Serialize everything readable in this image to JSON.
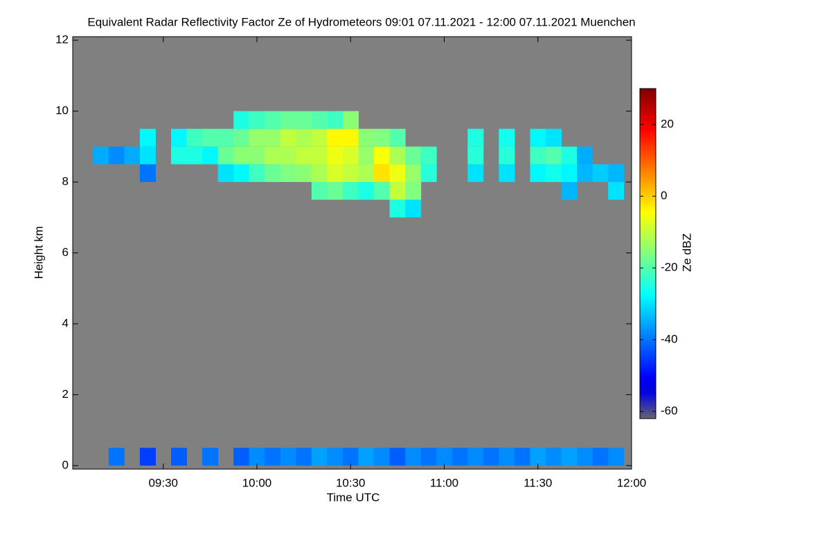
{
  "chart_data": {
    "type": "heatmap",
    "title": "Equivalent Radar Reflectivity Factor Ze of Hydrometeors   09:01 07.11.2021 - 12:00 07.11.2021 Muenchen",
    "x_label": "Time UTC",
    "y_label": "Height km",
    "background": "#808080",
    "x": [
      5,
      10,
      15,
      20,
      25,
      30,
      35,
      40,
      45,
      50,
      55,
      60,
      65,
      70,
      75,
      80,
      85,
      90,
      95,
      100,
      105,
      110,
      115,
      120,
      125,
      130,
      135,
      140,
      145,
      150,
      155,
      160,
      165,
      170,
      175
    ],
    "y": [
      0.25,
      7.25,
      7.75,
      8.25,
      8.75,
      9.25,
      9.75
    ],
    "z": [
      [
        null,
        null,
        -40,
        null,
        -45,
        null,
        -42,
        null,
        -40,
        null,
        -42,
        -38,
        -40,
        -38,
        -40,
        -36,
        -38,
        -40,
        -36,
        -38,
        -42,
        -38,
        -40,
        -38,
        -40,
        -38,
        -40,
        -38,
        -40,
        -36,
        -38,
        -36,
        -38,
        -40,
        -38
      ],
      [
        null,
        null,
        null,
        null,
        null,
        null,
        null,
        null,
        null,
        null,
        null,
        null,
        null,
        null,
        null,
        null,
        null,
        null,
        null,
        null,
        -25,
        -30,
        null,
        null,
        null,
        null,
        null,
        null,
        null,
        null,
        null,
        null,
        null,
        null,
        null
      ],
      [
        null,
        null,
        null,
        null,
        null,
        null,
        null,
        null,
        null,
        null,
        null,
        null,
        null,
        null,
        null,
        -20,
        -18,
        -22,
        -25,
        -20,
        -10,
        -16,
        null,
        null,
        null,
        null,
        null,
        null,
        null,
        null,
        null,
        -34,
        null,
        null,
        -30
      ],
      [
        null,
        null,
        null,
        null,
        -40,
        null,
        null,
        null,
        null,
        -30,
        -28,
        -22,
        -18,
        -16,
        -15,
        -12,
        -8,
        -10,
        -12,
        -2,
        -6,
        -14,
        -24,
        null,
        null,
        -30,
        null,
        -30,
        null,
        -28,
        -26,
        -28,
        -34,
        -32,
        -34
      ],
      [
        null,
        -35,
        -38,
        -35,
        -30,
        null,
        -25,
        -25,
        -28,
        -18,
        -15,
        -15,
        -12,
        -12,
        -10,
        -10,
        -6,
        -8,
        -14,
        -5,
        -12,
        -18,
        -22,
        null,
        null,
        -24,
        null,
        -24,
        null,
        -22,
        -20,
        -25,
        -35,
        null,
        null
      ],
      [
        null,
        null,
        null,
        null,
        -28,
        null,
        -28,
        -22,
        -20,
        -20,
        -18,
        -14,
        -14,
        -10,
        -12,
        -10,
        -4,
        -4,
        -15,
        -16,
        -20,
        null,
        null,
        null,
        null,
        -25,
        null,
        -26,
        null,
        -28,
        -30,
        null,
        null,
        null,
        null
      ],
      [
        null,
        null,
        null,
        null,
        null,
        null,
        null,
        null,
        null,
        null,
        -25,
        -22,
        -20,
        -18,
        -18,
        -20,
        -22,
        -15,
        null,
        null,
        null,
        null,
        null,
        null,
        null,
        null,
        null,
        null,
        null,
        null,
        null,
        null,
        null,
        null,
        null
      ]
    ],
    "xlim": [
      1,
      180
    ],
    "xticks": [
      {
        "value": 30,
        "label": "09:30"
      },
      {
        "value": 60,
        "label": "10:00"
      },
      {
        "value": 90,
        "label": "10:30"
      },
      {
        "value": 120,
        "label": "11:00"
      },
      {
        "value": 150,
        "label": "11:30"
      },
      {
        "value": 180,
        "label": "12:00"
      }
    ],
    "ylim": [
      -0.1,
      12.1
    ],
    "yticks": [
      0,
      2,
      4,
      6,
      8,
      10,
      12
    ],
    "colorbar": {
      "label": "Ze dBZ",
      "lim": [
        -62,
        30
      ],
      "ticks": [
        -60,
        -40,
        -20,
        0,
        20
      ]
    }
  }
}
